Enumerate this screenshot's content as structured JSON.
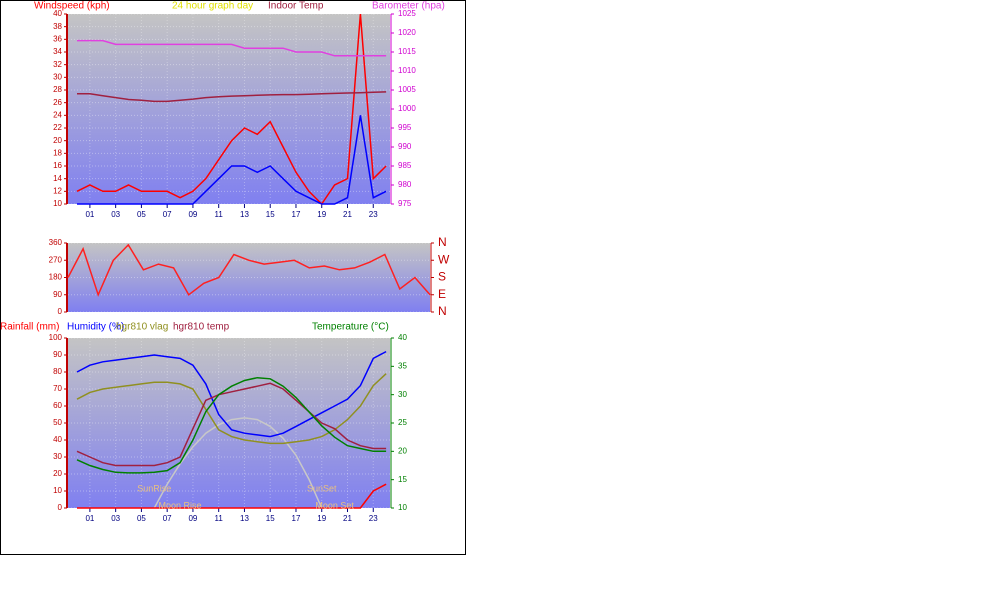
{
  "chart_data": [
    {
      "type": "line",
      "subtitle": "24 hour graph day",
      "grid": true,
      "x": [
        0,
        1,
        2,
        3,
        4,
        5,
        6,
        7,
        8,
        9,
        10,
        11,
        12,
        13,
        14,
        15,
        16,
        17,
        18,
        19,
        20,
        21,
        22,
        23,
        24
      ],
      "xlim": [
        -0.7,
        24.3
      ],
      "xticks": [
        {
          "value": 1,
          "label": "01"
        },
        {
          "value": 3,
          "label": "03"
        },
        {
          "value": 5,
          "label": "05"
        },
        {
          "value": 7,
          "label": "07"
        },
        {
          "value": 9,
          "label": "09"
        },
        {
          "value": 11,
          "label": "11"
        },
        {
          "value": 13,
          "label": "13"
        },
        {
          "value": 15,
          "label": "15"
        },
        {
          "value": 17,
          "label": "17"
        },
        {
          "value": 19,
          "label": "19"
        },
        {
          "value": 21,
          "label": "21"
        },
        {
          "value": 23,
          "label": "23"
        }
      ],
      "ylim": [
        10,
        40
      ],
      "yticks": [
        10,
        12,
        14,
        16,
        18,
        20,
        22,
        24,
        26,
        28,
        30,
        32,
        34,
        36,
        38,
        40
      ],
      "ytick_color": "#c00000",
      "y2lim": [
        975,
        1025
      ],
      "y2ticks": [
        975,
        980,
        985,
        990,
        995,
        1000,
        1005,
        1010,
        1015,
        1020,
        1025
      ],
      "y2tick_color": "#d000d0",
      "series": [
        {
          "name": "Windspeed (kph)",
          "color": "#ff0000",
          "values": [
            12,
            13,
            12,
            12,
            13,
            12,
            12,
            12,
            11,
            12,
            14,
            17,
            20,
            22,
            21,
            23,
            19,
            15,
            12,
            10,
            13,
            14,
            40,
            14,
            16
          ]
        },
        {
          "color": "#0000ff",
          "values": [
            10,
            10,
            10,
            10,
            10,
            10,
            10,
            10,
            10,
            10,
            12,
            14,
            16,
            16,
            15,
            16,
            14,
            12,
            11,
            10,
            10,
            11,
            24,
            11,
            12
          ]
        },
        {
          "name": "Indoor Temp",
          "color": "#a02040",
          "axis": "y2",
          "values": [
            1004,
            1004,
            1003.5,
            1003,
            1002.5,
            1002.3,
            1002,
            1002,
            1002.3,
            1002.6,
            1003,
            1003.2,
            1003.4,
            1003.5,
            1003.6,
            1003.7,
            1003.8,
            1003.8,
            1003.9,
            1004,
            1004.1,
            1004.2,
            1004.3,
            1004.4,
            1004.5
          ]
        },
        {
          "name": "Barometer (hpa)",
          "color": "#e040e0",
          "axis": "y2",
          "values": [
            1018,
            1018,
            1018,
            1017,
            1017,
            1017,
            1017,
            1017,
            1017,
            1017,
            1017,
            1017,
            1017,
            1016,
            1016,
            1016,
            1016,
            1015,
            1015,
            1015,
            1014,
            1014,
            1014,
            1014,
            1014
          ]
        }
      ]
    },
    {
      "type": "line",
      "grid": true,
      "x": [
        0,
        1,
        2,
        3,
        4,
        5,
        6,
        7,
        8,
        9,
        10,
        11,
        12,
        13,
        14,
        15,
        16,
        17,
        18,
        19,
        20,
        21,
        22,
        23,
        24
      ],
      "xlim": [
        0,
        24
      ],
      "ylim": [
        0,
        360
      ],
      "yticks": [
        0,
        90,
        180,
        270,
        360
      ],
      "ytick_color": "#c00000",
      "y2lim": [
        0,
        360
      ],
      "y2ticks": [
        {
          "value": 0,
          "label": "N"
        },
        {
          "value": 90,
          "label": "E"
        },
        {
          "value": 180,
          "label": "S"
        },
        {
          "value": 270,
          "label": "W"
        },
        {
          "value": 360,
          "label": "N"
        }
      ],
      "y2tick_color": "#c00000",
      "series": [
        {
          "color": "#ff2020",
          "values": [
            180,
            330,
            90,
            270,
            350,
            220,
            250,
            230,
            90,
            150,
            180,
            300,
            270,
            250,
            260,
            270,
            230,
            240,
            220,
            230,
            260,
            300,
            120,
            180,
            90
          ]
        }
      ]
    },
    {
      "type": "line",
      "grid": true,
      "x": [
        0,
        1,
        2,
        3,
        4,
        5,
        6,
        7,
        8,
        9,
        10,
        11,
        12,
        13,
        14,
        15,
        16,
        17,
        18,
        19,
        20,
        21,
        22,
        23,
        24
      ],
      "xlim": [
        -0.7,
        24.3
      ],
      "xticks": [
        {
          "value": 1,
          "label": "01"
        },
        {
          "value": 3,
          "label": "03"
        },
        {
          "value": 5,
          "label": "05"
        },
        {
          "value": 7,
          "label": "07"
        },
        {
          "value": 9,
          "label": "09"
        },
        {
          "value": 11,
          "label": "11"
        },
        {
          "value": 13,
          "label": "13"
        },
        {
          "value": 15,
          "label": "15"
        },
        {
          "value": 17,
          "label": "17"
        },
        {
          "value": 19,
          "label": "19"
        },
        {
          "value": 21,
          "label": "21"
        },
        {
          "value": 23,
          "label": "23"
        }
      ],
      "ylim": [
        0,
        100
      ],
      "yticks": [
        0,
        10,
        20,
        30,
        40,
        50,
        60,
        70,
        80,
        90,
        100
      ],
      "ytick_color": "#c00000",
      "y2lim": [
        10,
        40
      ],
      "y2ticks": [
        10,
        15,
        20,
        25,
        30,
        35,
        40
      ],
      "y2tick_color": "#008000",
      "series": [
        {
          "color": "#c8c8c8",
          "values": [
            null,
            null,
            null,
            null,
            null,
            null,
            0,
            14,
            26,
            36,
            44,
            49,
            52,
            53,
            52,
            48,
            41,
            31,
            17,
            0,
            null,
            null,
            null,
            null,
            null
          ]
        },
        {
          "name": "Rainfall (mm)",
          "color": "#ff0000",
          "values": [
            0,
            0,
            0,
            0,
            0,
            0,
            0,
            0,
            0,
            0,
            0,
            0,
            0,
            0,
            0,
            0,
            0,
            0,
            0,
            0,
            0,
            0,
            0,
            10,
            14
          ]
        },
        {
          "name": "Humidity (%)",
          "color": "#0000ff",
          "values": [
            80,
            84,
            86,
            87,
            88,
            89,
            90,
            89,
            88,
            84,
            73,
            55,
            46,
            44,
            43,
            42,
            44,
            48,
            52,
            56,
            60,
            64,
            72,
            88,
            92
          ]
        },
        {
          "name": "hgr810 vlag",
          "color": "#909020",
          "values": [
            64,
            68,
            70,
            71,
            72,
            73,
            74,
            74,
            73,
            70,
            58,
            46,
            42,
            40,
            39,
            38,
            38,
            39,
            40,
            42,
            46,
            52,
            60,
            72,
            79
          ]
        },
        {
          "name": "hgr810 temp",
          "color": "#a02040",
          "axis": "y2",
          "values": [
            20,
            19,
            18,
            17.5,
            17.5,
            17.5,
            17.5,
            18,
            19,
            24,
            29,
            30,
            30.5,
            31,
            31.5,
            32,
            31,
            29,
            27,
            25,
            24,
            22,
            21,
            20.5,
            20.5
          ]
        },
        {
          "name": "Temperature (°C)",
          "color": "#008000",
          "axis": "y2",
          "values": [
            18.5,
            17.5,
            16.8,
            16.3,
            16.2,
            16.2,
            16.3,
            16.6,
            18,
            22,
            27,
            30,
            31.5,
            32.5,
            33,
            32.8,
            31.5,
            29.5,
            27,
            24.5,
            22.5,
            21,
            20.5,
            20,
            20
          ]
        }
      ],
      "annotations": [
        {
          "text": "SunRise",
          "x": 6
        },
        {
          "text": "Moon Rise",
          "x": 8
        },
        {
          "text": "SunSet",
          "x": 19
        },
        {
          "text": "Moon Set",
          "x": 20
        }
      ]
    }
  ]
}
